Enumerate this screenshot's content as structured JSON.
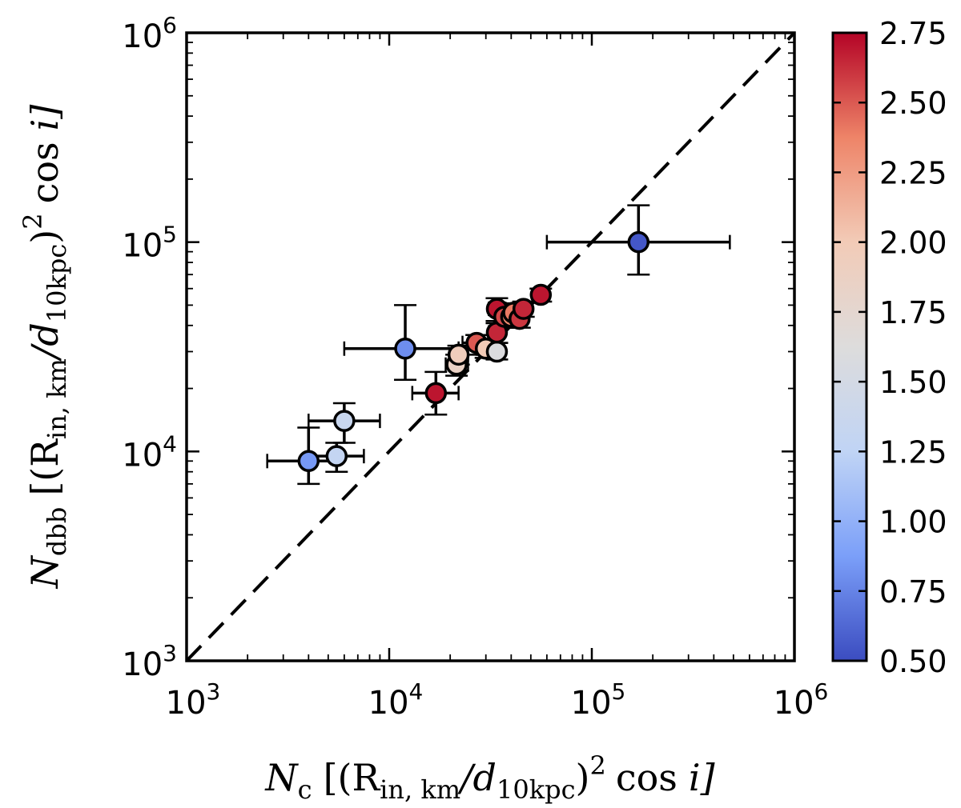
{
  "chart_data": {
    "type": "scatter",
    "title": "",
    "xlabel": {
      "sym": "N",
      "sub": "c",
      "rest": "[(R",
      "rsub": "in, km",
      "slash": "/d",
      "dsub": "10kpc",
      "tail": ")",
      "pow": "2",
      "cos": "cos",
      "i": "i]"
    },
    "ylabel": {
      "sym": "N",
      "sub": "dbb",
      "rest": "[(R",
      "rsub": "in, km",
      "slash": "/d",
      "dsub": "10kpc",
      "tail": ")",
      "pow": "2",
      "cos": "cos",
      "i": "i]"
    },
    "xscale": "log",
    "yscale": "log",
    "xlim": [
      1000,
      1000000
    ],
    "ylim": [
      1000,
      1000000
    ],
    "x_ticks": [
      {
        "base": "10",
        "exp": "3",
        "value": 1000
      },
      {
        "base": "10",
        "exp": "4",
        "value": 10000
      },
      {
        "base": "10",
        "exp": "5",
        "value": 100000
      },
      {
        "base": "10",
        "exp": "6",
        "value": 1000000
      }
    ],
    "y_ticks": [
      {
        "base": "10",
        "exp": "3",
        "value": 1000
      },
      {
        "base": "10",
        "exp": "4",
        "value": 10000
      },
      {
        "base": "10",
        "exp": "5",
        "value": 100000
      },
      {
        "base": "10",
        "exp": "6",
        "value": 1000000
      }
    ],
    "reference_line": {
      "style": "dashed",
      "relation": "y = x"
    },
    "colorbar": {
      "range": [
        0.5,
        2.75
      ],
      "ticks": [
        "0.50",
        "0.75",
        "1.00",
        "1.25",
        "1.50",
        "1.75",
        "2.00",
        "2.25",
        "2.50",
        "2.75"
      ],
      "colormap": [
        "#3b4cc0",
        "#7b9ff9",
        "#c0d4f5",
        "#dddcdc",
        "#f2cbb7",
        "#ee8468",
        "#b40426"
      ]
    },
    "points": [
      {
        "x": 170000,
        "y": 100000,
        "c": 0.55,
        "xerr": [
          60000,
          480000
        ],
        "yerr": [
          70000,
          150000
        ]
      },
      {
        "x": 12000,
        "y": 31000,
        "c": 0.8,
        "xerr": [
          6000,
          22000
        ],
        "yerr": [
          22000,
          50000
        ]
      },
      {
        "x": 4000,
        "y": 9000,
        "c": 0.85,
        "xerr": [
          2500,
          5500
        ],
        "yerr": [
          7000,
          13000
        ]
      },
      {
        "x": 6000,
        "y": 14000,
        "c": 1.35,
        "xerr": [
          4000,
          9000
        ],
        "yerr": [
          11000,
          17000
        ]
      },
      {
        "x": 5500,
        "y": 9500,
        "c": 1.3,
        "xerr": [
          4000,
          7500
        ],
        "yerr": [
          8000,
          11000
        ]
      },
      {
        "x": 17000,
        "y": 19000,
        "c": 2.7,
        "xerr": [
          13000,
          22000
        ],
        "yerr": [
          15000,
          24000
        ]
      },
      {
        "x": 21500,
        "y": 26000,
        "c": 1.85,
        "xerr": [
          19000,
          24500
        ],
        "yerr": [
          23000,
          29000
        ]
      },
      {
        "x": 22000,
        "y": 29000,
        "c": 1.95,
        "xerr": [
          20000,
          24500
        ],
        "yerr": [
          26000,
          32000
        ]
      },
      {
        "x": 27000,
        "y": 33000,
        "c": 2.5,
        "xerr": [
          23000,
          31000
        ],
        "yerr": [
          29000,
          36000
        ]
      },
      {
        "x": 30000,
        "y": 31000,
        "c": 2.0,
        "xerr": [
          27000,
          33000
        ],
        "yerr": [
          28000,
          34000
        ]
      },
      {
        "x": 34000,
        "y": 30000,
        "c": 1.6,
        "xerr": [
          31000,
          37000
        ],
        "yerr": [
          27500,
          33000
        ]
      },
      {
        "x": 34000,
        "y": 37000,
        "c": 2.65,
        "xerr": [
          31000,
          37000
        ],
        "yerr": [
          33000,
          41000
        ]
      },
      {
        "x": 34000,
        "y": 48000,
        "c": 2.7,
        "xerr": [
          31000,
          37500
        ],
        "yerr": [
          42000,
          54000
        ]
      },
      {
        "x": 37000,
        "y": 44000,
        "c": 2.55,
        "xerr": [
          33500,
          41000
        ],
        "yerr": [
          39000,
          49000
        ]
      },
      {
        "x": 40000,
        "y": 44000,
        "c": 2.35,
        "xerr": [
          36000,
          44000
        ],
        "yerr": [
          39000,
          49000
        ]
      },
      {
        "x": 41000,
        "y": 46000,
        "c": 2.4,
        "xerr": [
          37000,
          45000
        ],
        "yerr": [
          41000,
          51000
        ]
      },
      {
        "x": 44000,
        "y": 43000,
        "c": 2.6,
        "xerr": [
          40000,
          48000
        ],
        "yerr": [
          39000,
          47000
        ]
      },
      {
        "x": 46000,
        "y": 48000,
        "c": 2.65,
        "xerr": [
          42000,
          50000
        ],
        "yerr": [
          44000,
          52000
        ]
      },
      {
        "x": 56000,
        "y": 56000,
        "c": 2.7,
        "xerr": [
          52000,
          60000
        ],
        "yerr": [
          52000,
          60000
        ]
      }
    ]
  }
}
